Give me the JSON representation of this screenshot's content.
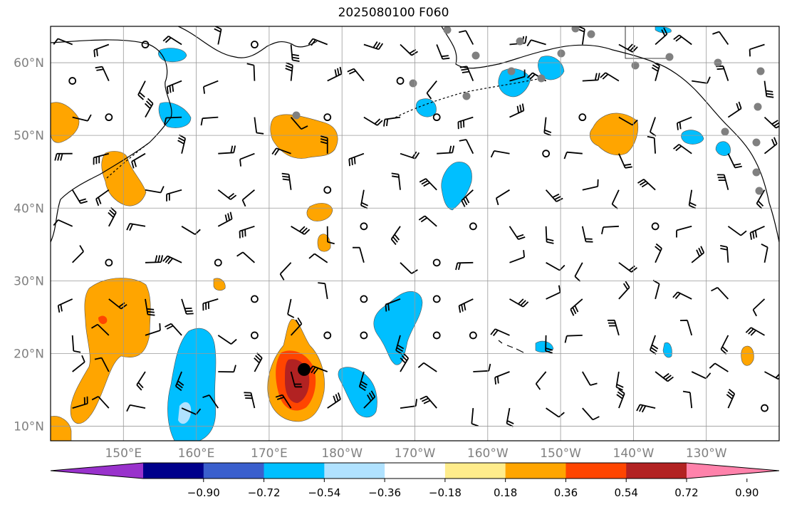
{
  "title": "2025080100 F060",
  "lat_ticks": [
    {
      "label": "60°N",
      "lat": 60
    },
    {
      "label": "50°N",
      "lat": 50
    },
    {
      "label": "40°N",
      "lat": 40
    },
    {
      "label": "30°N",
      "lat": 30
    },
    {
      "label": "20°N",
      "lat": 20
    },
    {
      "label": "10°N",
      "lat": 10
    }
  ],
  "lon_ticks": [
    {
      "label": "150°E",
      "lon": 150
    },
    {
      "label": "160°E",
      "lon": 160
    },
    {
      "label": "170°E",
      "lon": 170
    },
    {
      "label": "180°W",
      "lon": 180
    },
    {
      "label": "170°W",
      "lon": 190
    },
    {
      "label": "160°W",
      "lon": 200
    },
    {
      "label": "150°W",
      "lon": 210
    },
    {
      "label": "140°W",
      "lon": 220
    },
    {
      "label": "130°W",
      "lon": 230
    }
  ],
  "extent": {
    "lon_min": 140,
    "lon_max": 240,
    "lat_min": 8,
    "lat_max": 65
  },
  "colorbar": {
    "colors": [
      "#9932cc",
      "#00008b",
      "#3a5fcd",
      "#00bfff",
      "#b0e2ff",
      "#ffffff",
      "#ffec8b",
      "#ffa500",
      "#ff4500",
      "#b22222",
      "#ff82ab"
    ],
    "ticks": [
      "−0.90",
      "−0.72",
      "−0.54",
      "−0.36",
      "−0.18",
      "0.18",
      "0.36",
      "0.54",
      "0.72",
      "0.90"
    ]
  },
  "shaded_regions": [
    {
      "name": "positive-anomaly-west-pacific",
      "color": "#ffa500",
      "lon": 149,
      "lat": 25
    },
    {
      "name": "positive-anomaly-typhoon",
      "color": "#ffa500",
      "lon": 173.5,
      "lat": 17
    },
    {
      "name": "strong-positive-typhoon-core",
      "color": "#b22222",
      "lon": 174,
      "lat": 17
    },
    {
      "name": "negative-anomaly-160e",
      "color": "#00bfff",
      "lon": 160,
      "lat": 15
    },
    {
      "name": "negative-anomaly-170w",
      "color": "#00bfff",
      "lon": 188,
      "lat": 24
    },
    {
      "name": "positive-anomaly-north-pacific",
      "color": "#ffa500",
      "lon": 175,
      "lat": 51
    },
    {
      "name": "positive-anomaly-gulf-alaska",
      "color": "#ffa500",
      "lon": 218,
      "lat": 50
    },
    {
      "name": "negative-anomaly-central-pacific",
      "color": "#00bfff",
      "lon": 196,
      "lat": 43
    }
  ],
  "storm_marker": {
    "lon": 174.8,
    "lat": 17.8
  }
}
